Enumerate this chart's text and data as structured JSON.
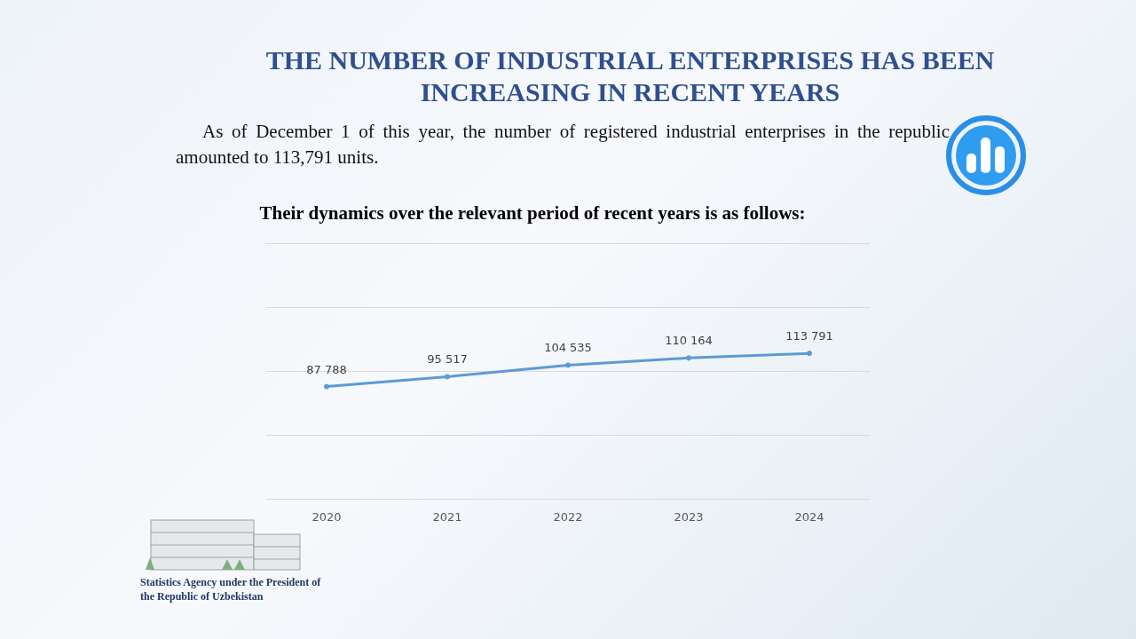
{
  "chart_data": {
    "type": "line",
    "title": "THE NUMBER OF INDUSTRIAL ENTERPRISES HAS BEEN INCREASING IN RECENT YEARS",
    "subtitle": "As of December 1 of this year, the number of registered industrial enterprises in the republic amounted to 113,791 units.",
    "annotations": [
      "Their dynamics over the relevant period of recent years is as follows:",
      "Statistics Agency under the President of the Republic of Uzbekistan"
    ],
    "categories": [
      "2020",
      "2021",
      "2022",
      "2023",
      "2024"
    ],
    "series": [
      {
        "color": "#5b9bd5",
        "values": [
          87788,
          95517,
          104535,
          110164,
          113791
        ],
        "value_labels": [
          "87 788",
          "95 517",
          "104 535",
          "110 164",
          "113 791"
        ]
      }
    ],
    "ylim": [
      0,
      200000
    ],
    "yticks": [
      {
        "value": 0,
        "label": null
      },
      {
        "value": 50000,
        "label": null
      },
      {
        "value": 100000,
        "label": null
      },
      {
        "value": 150000,
        "label": null
      },
      {
        "value": 200000,
        "label": null
      }
    ],
    "grid": "y",
    "tick_labels": "x",
    "marker": "circle"
  }
}
